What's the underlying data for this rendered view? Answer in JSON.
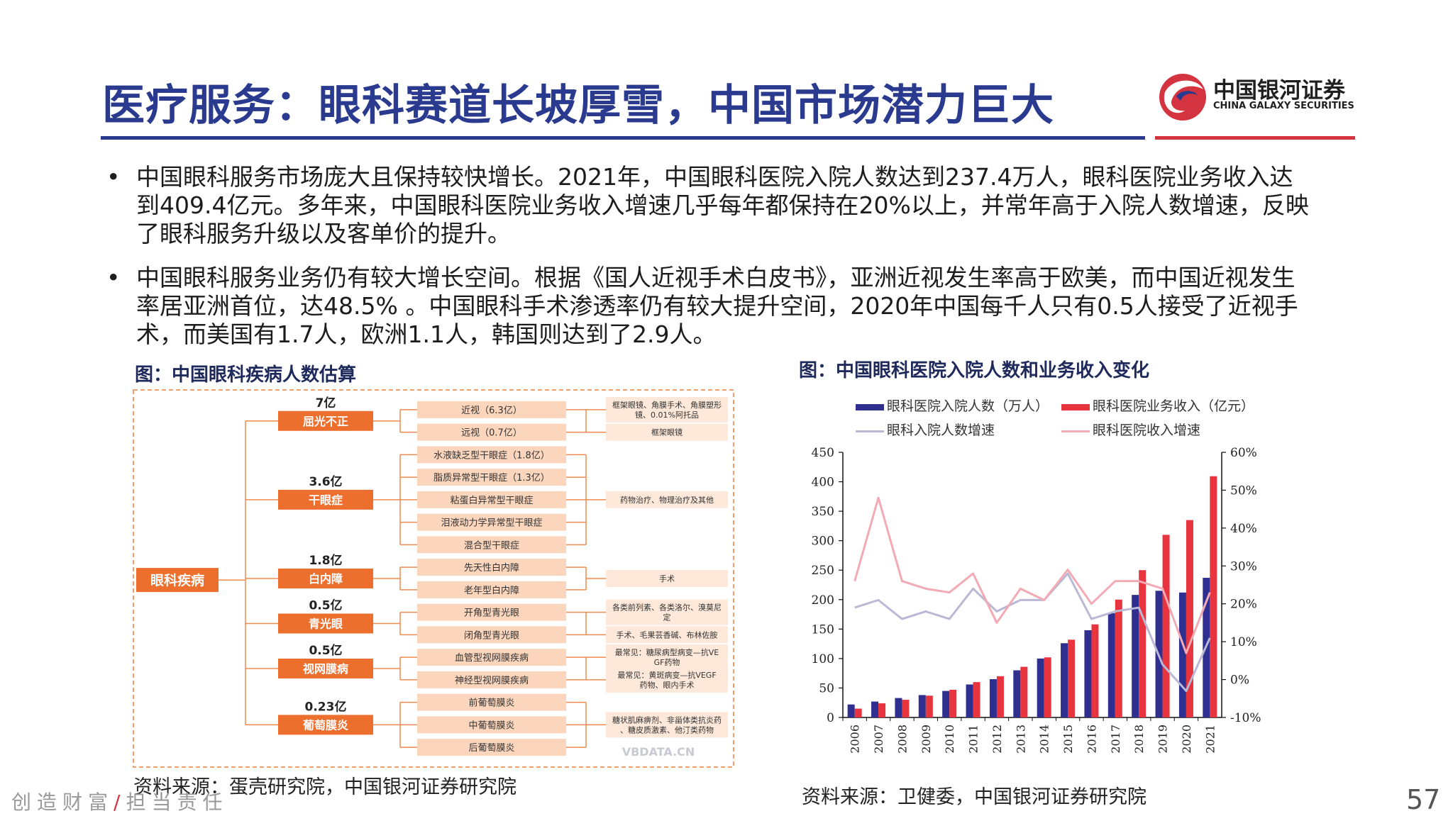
{
  "header": {
    "title": "医疗服务：眼科赛道长坡厚雪，中国市场潜力巨大",
    "logo_cn": "中国银河证券",
    "logo_en": "CHINA GALAXY SECURITIES"
  },
  "bullets": [
    "中国眼科服务市场庞大且保持较快增长。2021年，中国眼科医院入院人数达到237.4万人，眼科医院业务收入达到409.4亿元。多年来，中国眼科医院业务收入增速几乎每年都保持在20%以上，并常年高于入院人数增速，反映了眼科服务升级以及客单价的提升。",
    "中国眼科服务业务仍有较大增长空间。根据《国人近视手术白皮书》，亚洲近视发生率高于欧美，而中国近视发生率居亚洲首位，达48.5% 。中国眼科手术渗透率仍有较大提升空间，2020年中国每千人只有0.5人接受了近视手术，而美国有1.7人，欧洲1.1人，韩国则达到了2.9人。"
  ],
  "left_figure": {
    "caption": "图：中国眼科疾病人数估算",
    "source": "资料来源：蛋壳研究院，中国银河证券研究院",
    "root": "眼科疾病",
    "watermark": "VBDATA.CN",
    "categories": [
      {
        "count": "7亿",
        "name": "屈光不正",
        "types": [
          "近视（6.3亿）",
          "远视（0.7亿）"
        ],
        "treatments": [
          "框架眼镜、角膜手术、角膜塑形镜、0.01%阿托品",
          "框架眼镜"
        ]
      },
      {
        "count": "3.6亿",
        "name": "干眼症",
        "types": [
          "水液缺乏型干眼症（1.8亿）",
          "脂质异常型干眼症（1.3亿）",
          "粘蛋白异常型干眼症",
          "泪液动力学异常型干眼症",
          "混合型干眼症"
        ],
        "treatments": [
          "药物治疗、物理治疗及其他"
        ]
      },
      {
        "count": "1.8亿",
        "name": "白内障",
        "types": [
          "先天性白内障",
          "老年型白内障"
        ],
        "treatments": [
          "手术"
        ]
      },
      {
        "count": "0.5亿",
        "name": "青光眼",
        "types": [
          "开角型青光眼",
          "闭角型青光眼"
        ],
        "treatments": [
          "各类前列素、各类洛尔、溴莫尼定",
          "手术、毛果芸香碱、布林佐胺"
        ]
      },
      {
        "count": "0.5亿",
        "name": "视网膜病",
        "types": [
          "血管型视网膜疾病",
          "神经型视网膜疾病"
        ],
        "treatments": [
          "最常见：糖尿病型病变—抗VEGF药物",
          "最常见：黄斑病变—抗VEGF药物、眼内手术"
        ]
      },
      {
        "count": "0.23亿",
        "name": "葡萄膜炎",
        "types": [
          "前葡萄膜炎",
          "中葡萄膜炎",
          "后葡萄膜炎"
        ],
        "treatments": [
          "糖状肌麻痹剂、非甾体类抗炎药、糖皮质激素、他汀类药物"
        ]
      }
    ]
  },
  "right_figure": {
    "caption": "图：中国眼科医院入院人数和业务收入变化",
    "source": "资料来源：卫健委，中国银河证券研究院"
  },
  "chart_data": {
    "type": "bar",
    "categories": [
      "2006",
      "2007",
      "2008",
      "2009",
      "2010",
      "2011",
      "2012",
      "2013",
      "2014",
      "2015",
      "2016",
      "2017",
      "2018",
      "2019",
      "2020",
      "2021"
    ],
    "series": [
      {
        "name": "眼科医院入院人数（万人）",
        "kind": "bar",
        "axis": "left",
        "color": "#2e2f8f",
        "values": [
          22,
          27,
          33,
          38,
          45,
          56,
          65,
          80,
          100,
          126,
          148,
          177,
          208,
          215,
          212,
          237
        ]
      },
      {
        "name": "眼科医院业务收入（亿元）",
        "kind": "bar",
        "axis": "left",
        "color": "#e8343f",
        "values": [
          15,
          24,
          30,
          37,
          47,
          60,
          70,
          86,
          102,
          132,
          158,
          200,
          250,
          310,
          335,
          409.4
        ]
      },
      {
        "name": "眼科入院人数增速",
        "kind": "line",
        "axis": "right",
        "color": "#b9b9d6",
        "values": [
          0.19,
          0.21,
          0.16,
          0.18,
          0.16,
          0.24,
          0.18,
          0.21,
          0.21,
          0.28,
          0.16,
          0.18,
          0.19,
          0.04,
          -0.03,
          0.11
        ]
      },
      {
        "name": "眼科医院收入增速",
        "kind": "line",
        "axis": "right",
        "color": "#f2aab4",
        "values": [
          0.26,
          0.48,
          0.26,
          0.24,
          0.23,
          0.28,
          0.15,
          0.24,
          0.21,
          0.29,
          0.2,
          0.26,
          0.26,
          0.24,
          0.07,
          0.23
        ]
      }
    ],
    "ylim_left": [
      0,
      450
    ],
    "yticks_left": [
      0,
      50,
      100,
      150,
      200,
      250,
      300,
      350,
      400,
      450
    ],
    "ylim_right": [
      -0.1,
      0.6
    ],
    "yticks_right": [
      "-10%",
      "0%",
      "10%",
      "20%",
      "30%",
      "40%",
      "50%",
      "60%"
    ],
    "legend": "top",
    "grid": false
  },
  "footer": {
    "slogan_left": "创造财富",
    "slash": "/",
    "slogan_right": "担当责任",
    "page": "57"
  }
}
